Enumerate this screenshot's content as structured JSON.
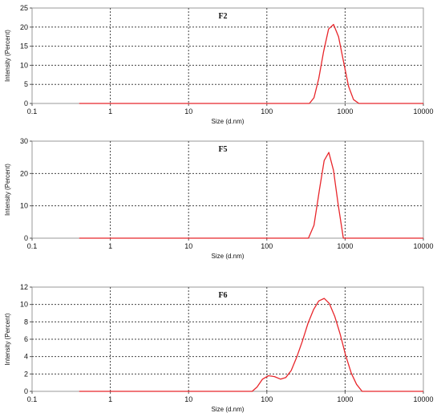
{
  "chart_data": [
    {
      "type": "line",
      "title": "F2",
      "xlabel": "Size (d.nm)",
      "ylabel": "Intensity (Percent)",
      "xscale": "log",
      "xlim": [
        0.1,
        10000
      ],
      "ylim": [
        0,
        25
      ],
      "xticks": [
        "0.1",
        "1",
        "10",
        "100",
        "1000",
        "10000"
      ],
      "yticks": [
        "0",
        "5",
        "10",
        "15",
        "20",
        "25"
      ],
      "grid": true,
      "color": "#e8262b",
      "series": [
        {
          "x": [
            0.4,
            350,
            400,
            460,
            530,
            615,
            712,
            825,
            955,
            1106,
            1280,
            1500,
            10000
          ],
          "y": [
            0,
            0,
            1.5,
            6.5,
            13.5,
            19.5,
            20.7,
            17.5,
            11,
            4.5,
            1,
            0,
            0
          ]
        }
      ]
    },
    {
      "type": "line",
      "title": "F5",
      "xlabel": "Size (d.nm)",
      "ylabel": "Intensity (Percent)",
      "xscale": "log",
      "xlim": [
        0.1,
        10000
      ],
      "ylim": [
        0,
        30
      ],
      "xticks": [
        "0.1",
        "1",
        "10",
        "100",
        "1000",
        "10000"
      ],
      "yticks": [
        "0",
        "10",
        "20",
        "30"
      ],
      "grid": true,
      "color": "#e8262b",
      "series": [
        {
          "x": [
            0.4,
            340,
            400,
            470,
            540,
            620,
            710,
            820,
            950,
            10000
          ],
          "y": [
            0,
            0,
            4,
            15,
            24,
            26.5,
            21,
            10,
            0,
            0
          ]
        }
      ]
    },
    {
      "type": "line",
      "title": "F6",
      "xlabel": "Size (d.nm)",
      "ylabel": "Intensity (Percent)",
      "xscale": "log",
      "xlim": [
        0.1,
        10000
      ],
      "ylim": [
        0,
        12
      ],
      "xticks": [
        "0.1",
        "1",
        "10",
        "100",
        "1000",
        "10000"
      ],
      "yticks": [
        "0",
        "2",
        "4",
        "6",
        "8",
        "10",
        "12"
      ],
      "grid": true,
      "color": "#e8262b",
      "series": [
        {
          "x": [
            0.4,
            65,
            75,
            88,
            105,
            125,
            150,
            175,
            205,
            240,
            285,
            335,
            395,
            460,
            540,
            630,
            740,
            870,
            1020,
            1200,
            1400,
            1650,
            10000
          ],
          "y": [
            0,
            0,
            0.5,
            1.4,
            1.8,
            1.7,
            1.4,
            1.6,
            2.4,
            3.9,
            5.8,
            7.8,
            9.4,
            10.4,
            10.7,
            10.1,
            8.6,
            6.5,
            4.1,
            2.1,
            0.8,
            0,
            0
          ]
        }
      ]
    }
  ]
}
